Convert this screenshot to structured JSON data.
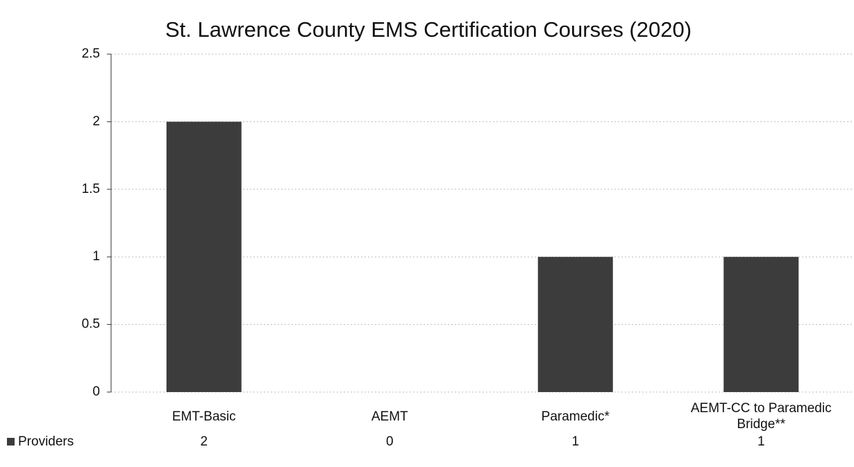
{
  "chart_data": {
    "type": "bar",
    "title": "St. Lawrence County EMS Certification Courses (2020)",
    "categories": [
      "EMT-Basic",
      "AEMT",
      "Paramedic*",
      "AEMT-CC to Paramedic Bridge**"
    ],
    "series": [
      {
        "name": "Providers",
        "color": "#3c3c3c",
        "values": [
          2,
          0,
          1,
          1
        ]
      }
    ],
    "ylim": [
      0,
      2.5
    ],
    "yticks": [
      0,
      0.5,
      1,
      1.5,
      2,
      2.5
    ],
    "grid": true,
    "legend": "bottom-left"
  }
}
